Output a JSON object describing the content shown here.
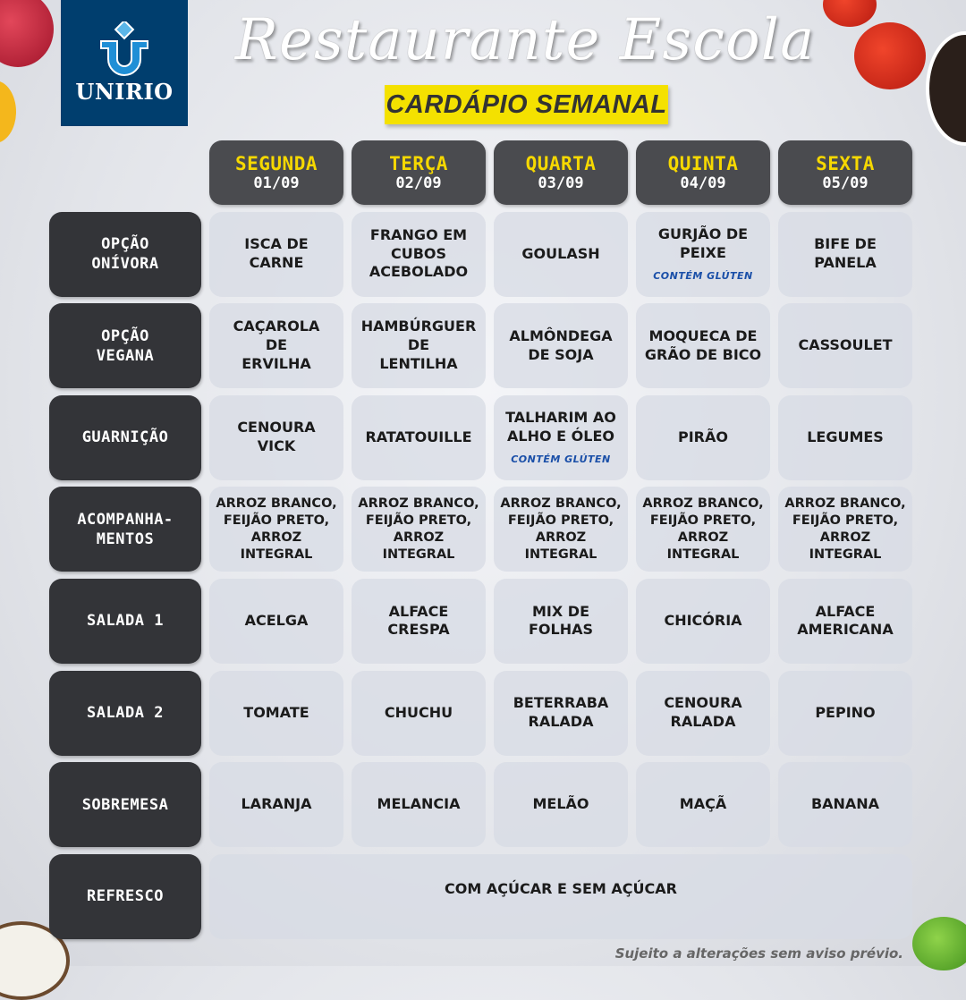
{
  "logo": {
    "text": "UNIRIO",
    "color": "#003e6e"
  },
  "header": {
    "title": "Restaurante Escola",
    "subtitle": "CARDÁPIO SEMANAL"
  },
  "days": [
    {
      "name": "SEGUNDA",
      "date": "01/09"
    },
    {
      "name": "TERÇA",
      "date": "02/09"
    },
    {
      "name": "QUARTA",
      "date": "03/09"
    },
    {
      "name": "QUINTA",
      "date": "04/09"
    },
    {
      "name": "SEXTA",
      "date": "05/09"
    }
  ],
  "rows": [
    {
      "label": "OPÇÃO\nONÍVORA",
      "items": [
        {
          "text": "ISCA DE\nCARNE"
        },
        {
          "text": "FRANGO EM\nCUBOS\nACEBOLADO"
        },
        {
          "text": "GOULASH"
        },
        {
          "text": "GURJÃO DE\nPEIXE",
          "note": "CONTÉM GLÚTEN"
        },
        {
          "text": "BIFE DE\nPANELA"
        }
      ]
    },
    {
      "label": "OPÇÃO\nVEGANA",
      "items": [
        {
          "text": "CAÇAROLA\nDE\nERVILHA"
        },
        {
          "text": "HAMBÚRGUER\nDE\nLENTILHA"
        },
        {
          "text": "ALMÔNDEGA\nDE SOJA"
        },
        {
          "text": "MOQUECA DE\nGRÃO DE BICO"
        },
        {
          "text": "CASSOULET"
        }
      ]
    },
    {
      "label": "GUARNIÇÃO",
      "items": [
        {
          "text": "CENOURA\nVICK"
        },
        {
          "text": "RATATOUILLE"
        },
        {
          "text": "TALHARIM AO\nALHO E ÓLEO",
          "note": "CONTÉM GLÚTEN"
        },
        {
          "text": "PIRÃO"
        },
        {
          "text": "LEGUMES"
        }
      ]
    },
    {
      "label": "ACOMPANHA-\nMENTOS",
      "small": true,
      "items": [
        {
          "text": "ARROZ BRANCO,\nFEIJÃO PRETO,\nARROZ INTEGRAL"
        },
        {
          "text": "ARROZ BRANCO,\nFEIJÃO PRETO,\nARROZ INTEGRAL"
        },
        {
          "text": "ARROZ BRANCO,\nFEIJÃO PRETO,\nARROZ INTEGRAL"
        },
        {
          "text": "ARROZ BRANCO,\nFEIJÃO PRETO,\nARROZ INTEGRAL"
        },
        {
          "text": "ARROZ BRANCO,\nFEIJÃO PRETO,\nARROZ INTEGRAL"
        }
      ]
    },
    {
      "label": "SALADA 1",
      "items": [
        {
          "text": "ACELGA"
        },
        {
          "text": "ALFACE\nCRESPA"
        },
        {
          "text": "MIX DE\nFOLHAS"
        },
        {
          "text": "CHICÓRIA"
        },
        {
          "text": "ALFACE\nAMERICANA"
        }
      ]
    },
    {
      "label": "SALADA 2",
      "items": [
        {
          "text": "TOMATE"
        },
        {
          "text": "CHUCHU"
        },
        {
          "text": "BETERRABA\nRALADA"
        },
        {
          "text": "CENOURA\nRALADA"
        },
        {
          "text": "PEPINO"
        }
      ]
    },
    {
      "label": "SOBREMESA",
      "items": [
        {
          "text": "LARANJA"
        },
        {
          "text": "MELANCIA"
        },
        {
          "text": "MELÃO"
        },
        {
          "text": "MAÇÃ"
        },
        {
          "text": "BANANA"
        }
      ]
    }
  ],
  "refresco": {
    "label": "REFRESCO",
    "text": "COM AÇÚCAR E SEM AÇÚCAR"
  },
  "footer": "Sujeito a alterações sem aviso prévio.",
  "colors": {
    "day_header_bg": "#4a4b4f",
    "day_name": "#f6d800",
    "row_header_bg": "#333438",
    "subtitle_bg": "#f4e100",
    "note": "#1a4fa8"
  }
}
